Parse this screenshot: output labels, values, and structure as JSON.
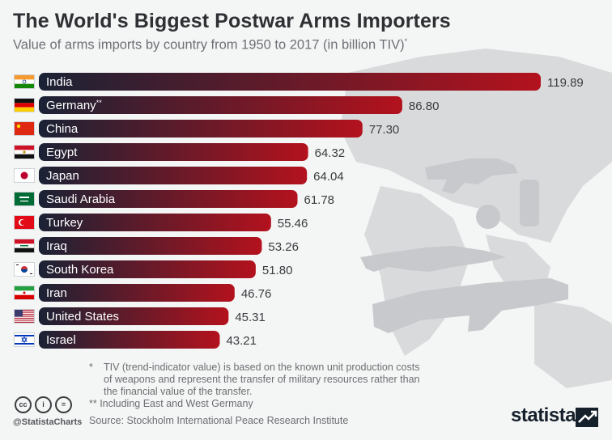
{
  "header": {
    "title": "The World's Biggest Postwar Arms Importers",
    "subtitle": "Value of arms imports by country from 1950 to 2017 (in billion TIV)",
    "subtitle_mark": "*"
  },
  "chart_data": {
    "type": "bar",
    "orientation": "horizontal",
    "categories": [
      "India",
      "Germany**",
      "China",
      "Egypt",
      "Japan",
      "Saudi Arabia",
      "Turkey",
      "Iraq",
      "South Korea",
      "Iran",
      "United States",
      "Israel"
    ],
    "values": [
      119.89,
      86.8,
      77.3,
      64.32,
      64.04,
      61.78,
      55.46,
      53.26,
      51.8,
      46.76,
      45.31,
      43.21
    ],
    "value_labels": [
      "119.89",
      "86.80",
      "77.30",
      "64.32",
      "64.04",
      "61.78",
      "55.46",
      "53.26",
      "51.80",
      "46.76",
      "45.31",
      "43.21"
    ],
    "flags": [
      "flag-india",
      "flag-germany",
      "flag-china",
      "flag-egypt",
      "flag-japan",
      "flag-saudi-arabia",
      "flag-turkey",
      "flag-iraq",
      "flag-south-korea",
      "flag-iran",
      "flag-united-states",
      "flag-israel"
    ],
    "colors": {
      "bar_start": "#1a2235",
      "bar_end": "#b3121d"
    },
    "xlim": [
      0,
      119.89
    ],
    "grid": false,
    "legend": "none"
  },
  "footnotes": {
    "note1_mark": "*",
    "note1": "TIV (trend-indicator value) is based on the known unit production costs of weapons and represent the transfer of military resources rather than the financial value of the transfer.",
    "note2": "** Including East and West Germany",
    "source": "Source: Stockholm International Peace Research Institute"
  },
  "branding": {
    "handle": "@StatistaCharts",
    "logo": "statista",
    "license_icons": [
      "cc-icon",
      "attribution-icon",
      "no-derivatives-icon"
    ]
  }
}
